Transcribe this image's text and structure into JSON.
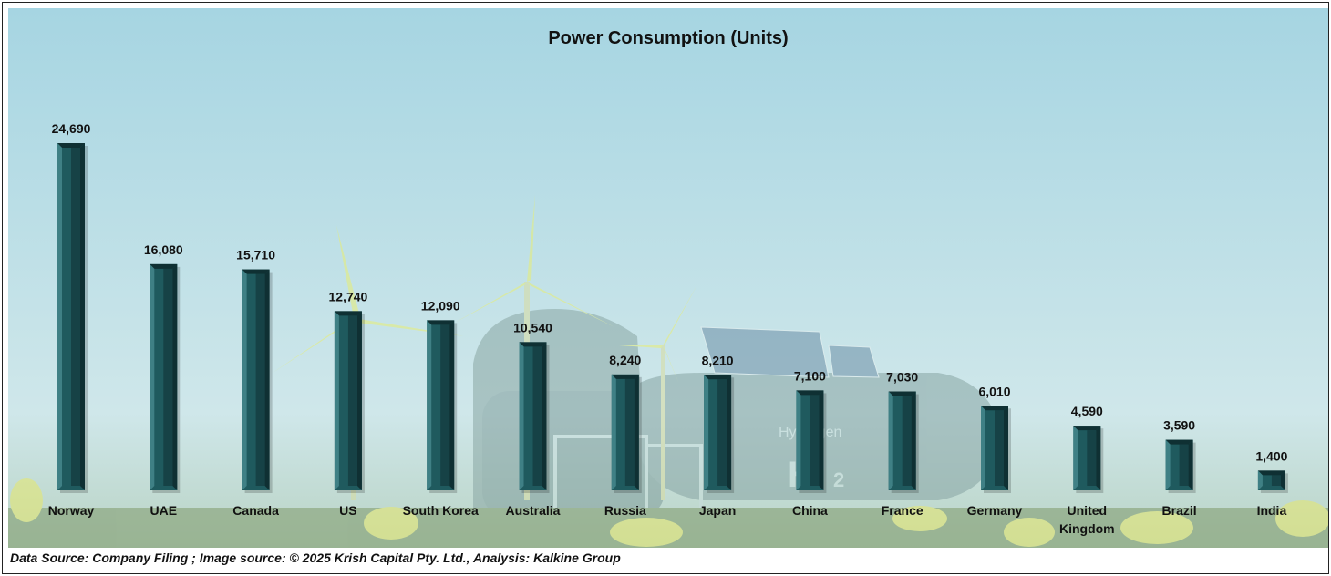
{
  "chart_data": {
    "type": "bar",
    "title": "Power Consumption (Units)",
    "categories": [
      "Norway",
      "UAE",
      "Canada",
      "US",
      "South Korea",
      "Australia",
      "Russia",
      "Japan",
      "China",
      "France",
      "Germany",
      "United Kingdom",
      "Brazil",
      "India"
    ],
    "values": [
      24690,
      16080,
      15710,
      12740,
      12090,
      10540,
      8240,
      8210,
      7100,
      7030,
      6010,
      4590,
      3590,
      1400
    ],
    "value_labels": [
      "24,690",
      "16,080",
      "15,710",
      "12,740",
      "12,090",
      "10,540",
      "8,240",
      "8,210",
      "7,100",
      "7,030",
      "6,010",
      "4,590",
      "3,590",
      "1,400"
    ],
    "xlabel": "",
    "ylabel": "",
    "ylim": [
      0,
      25000
    ],
    "grid": false,
    "legend": "none",
    "bar_color": "#1f5a5e"
  },
  "footer": {
    "source_text": "Data Source: Company Filing ; Image source: © 2025 Krish Capital Pty. Ltd., Analysis: Kalkine Group"
  },
  "colors": {
    "sky_top": "#a8d6e2",
    "sky_bottom": "#d8ecec",
    "bar_face": "#1f5a5e",
    "bar_dark": "#0f3033",
    "bar_light": "#3f8085"
  }
}
